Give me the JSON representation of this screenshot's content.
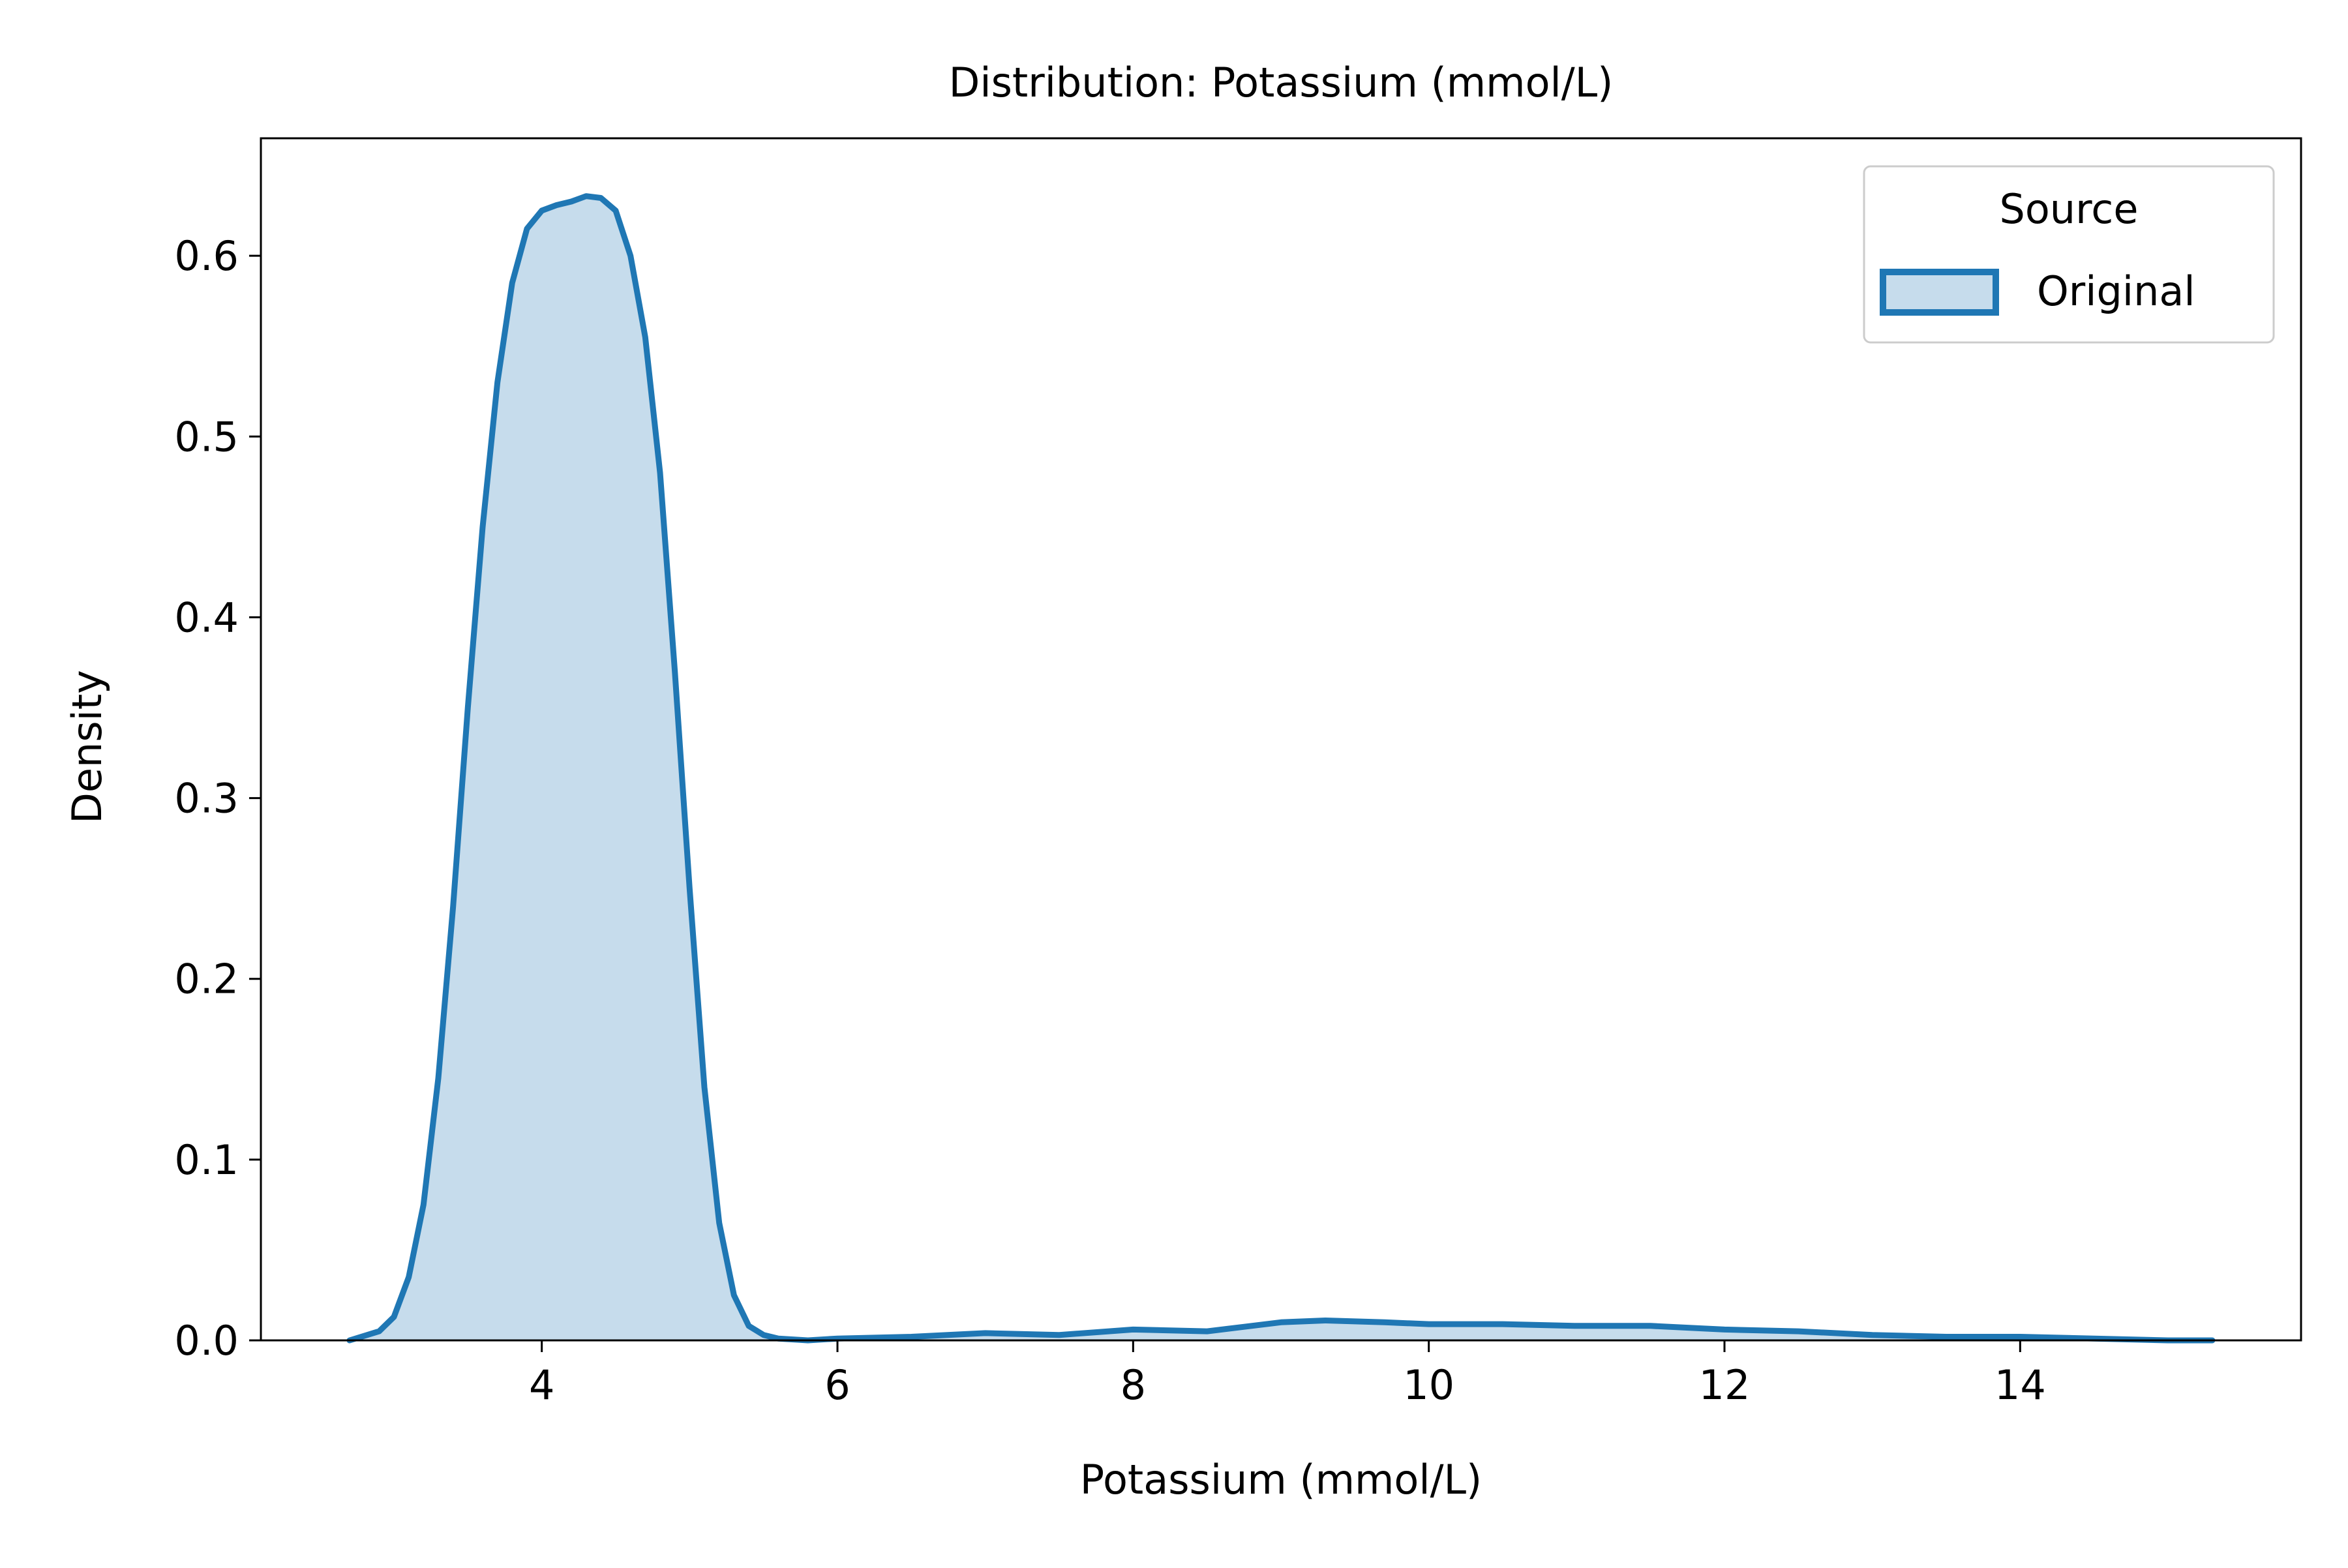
{
  "chart_data": {
    "type": "area",
    "title": "Distribution: Potassium (mmol/L)",
    "xlabel": "Potassium (mmol/L)",
    "ylabel": "Density",
    "xlim": [
      2.1,
      15.9
    ],
    "ylim": [
      0,
      0.665
    ],
    "xticks": [
      4,
      6,
      8,
      10,
      12,
      14
    ],
    "xtick_labels": [
      "4",
      "6",
      "8",
      "10",
      "12",
      "14"
    ],
    "yticks": [
      0.0,
      0.1,
      0.2,
      0.3,
      0.4,
      0.5,
      0.6
    ],
    "ytick_labels": [
      "0.0",
      "0.1",
      "0.2",
      "0.3",
      "0.4",
      "0.5",
      "0.6"
    ],
    "grid": false,
    "legend": {
      "title": "Source",
      "placement": "top-right",
      "entries": [
        "Original"
      ]
    },
    "series": [
      {
        "name": "Original",
        "color": "#1f77b4",
        "fill_color": "#c6dcec",
        "x": [
          2.7,
          2.9,
          3.0,
          3.1,
          3.2,
          3.3,
          3.4,
          3.5,
          3.6,
          3.7,
          3.8,
          3.9,
          4.0,
          4.1,
          4.2,
          4.3,
          4.4,
          4.5,
          4.6,
          4.7,
          4.8,
          4.9,
          5.0,
          5.1,
          5.2,
          5.3,
          5.4,
          5.5,
          5.6,
          5.8,
          6.0,
          6.5,
          7.0,
          7.5,
          8.0,
          8.5,
          9.0,
          9.3,
          9.7,
          10.0,
          10.5,
          11.0,
          11.5,
          12.0,
          12.5,
          13.0,
          13.5,
          14.0,
          14.5,
          15.0,
          15.3
        ],
        "y": [
          0.0,
          0.005,
          0.013,
          0.035,
          0.075,
          0.145,
          0.24,
          0.35,
          0.45,
          0.53,
          0.585,
          0.615,
          0.625,
          0.628,
          0.63,
          0.633,
          0.632,
          0.625,
          0.6,
          0.555,
          0.48,
          0.37,
          0.25,
          0.14,
          0.065,
          0.025,
          0.008,
          0.003,
          0.001,
          0.0,
          0.001,
          0.002,
          0.004,
          0.003,
          0.006,
          0.005,
          0.01,
          0.011,
          0.01,
          0.009,
          0.009,
          0.008,
          0.008,
          0.006,
          0.005,
          0.003,
          0.002,
          0.002,
          0.001,
          0.0,
          0.0
        ]
      }
    ]
  }
}
